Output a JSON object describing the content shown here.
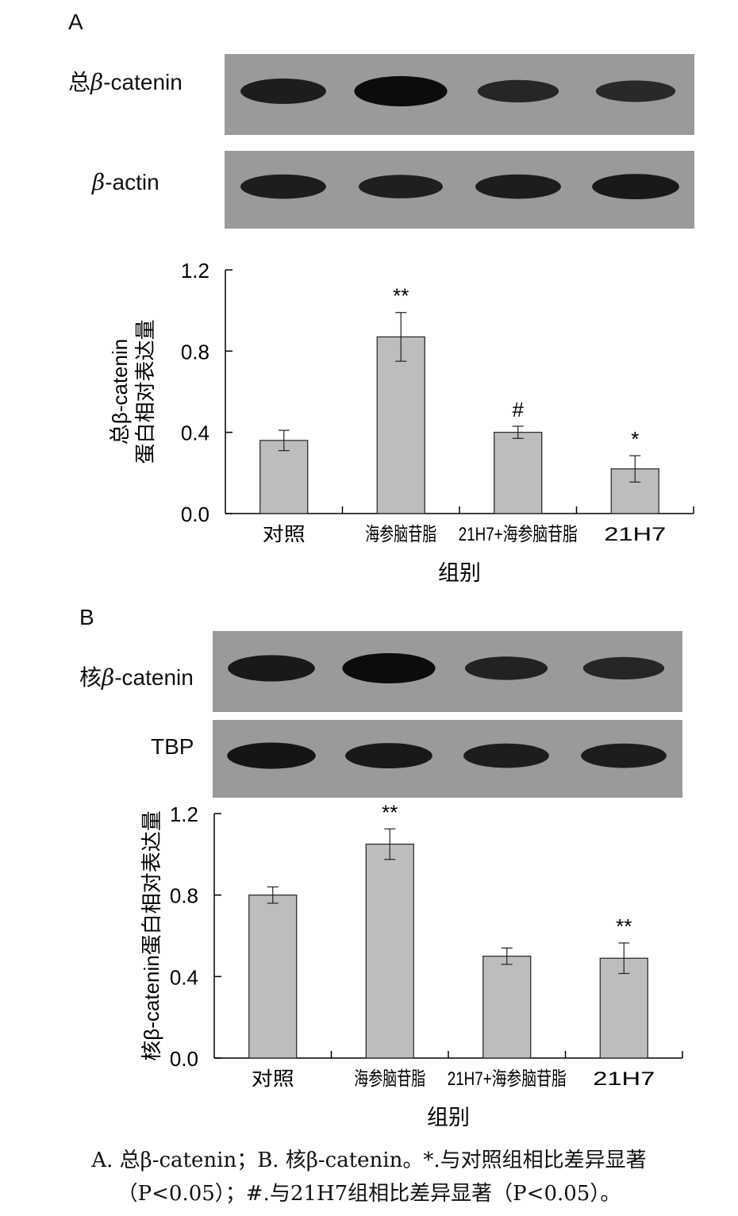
{
  "panels": [
    {
      "letter": "A",
      "blots": [
        {
          "label_prefix": "总",
          "label_greek": "β",
          "label_rest": "-catenin",
          "intensities": [
            0.75,
            1.0,
            0.6,
            0.55
          ]
        },
        {
          "label_prefix": "",
          "label_greek": "β",
          "label_rest": "-actin",
          "intensities": [
            0.75,
            0.7,
            0.75,
            0.8
          ]
        }
      ]
    },
    {
      "letter": "B",
      "blots": [
        {
          "label_prefix": "核",
          "label_greek": "β",
          "label_rest": "-catenin",
          "intensities": [
            0.8,
            1.0,
            0.65,
            0.6
          ]
        },
        {
          "label_prefix": "",
          "label_greek": "",
          "label_rest": "TBP",
          "intensities": [
            0.85,
            0.8,
            0.75,
            0.75
          ]
        }
      ]
    }
  ],
  "chart_data": [
    {
      "type": "bar",
      "categories": [
        "对照",
        "海参脑苷脂",
        "21H7+海参脑苷脂",
        "21H7"
      ],
      "values": [
        0.36,
        0.87,
        0.4,
        0.22
      ],
      "errors": [
        0.05,
        0.12,
        0.03,
        0.065
      ],
      "annotations": [
        "",
        "**",
        "#",
        "*"
      ],
      "ylabel": [
        "总β-catenin",
        "蛋白相对表达量"
      ],
      "xlabel": "组别",
      "ylim": [
        0,
        1.2
      ],
      "yticks": [
        "0.0",
        "0.4",
        "0.8",
        "1.2"
      ],
      "grid": false,
      "bar_color": "#bdbdbd"
    },
    {
      "type": "bar",
      "categories": [
        "对照",
        "海参脑苷脂",
        "21H7+海参脑苷脂",
        "21H7"
      ],
      "values": [
        0.8,
        1.05,
        0.5,
        0.49
      ],
      "errors": [
        0.04,
        0.075,
        0.04,
        0.075
      ],
      "annotations": [
        "",
        "**",
        "",
        "**"
      ],
      "ylabel": [
        "核β-catenin蛋白相对表达量"
      ],
      "xlabel": "组别",
      "ylim": [
        0,
        1.2
      ],
      "yticks": [
        "0.0",
        "0.4",
        "0.8",
        "1.2"
      ],
      "grid": false,
      "bar_color": "#bdbdbd"
    }
  ],
  "caption": {
    "line1": "A. 总β-catenin；B. 核β-catenin。*.与对照组相比差异显著",
    "line2": "（P<0.05）；#.与21H7组相比差异显著（P<0.05）。"
  }
}
